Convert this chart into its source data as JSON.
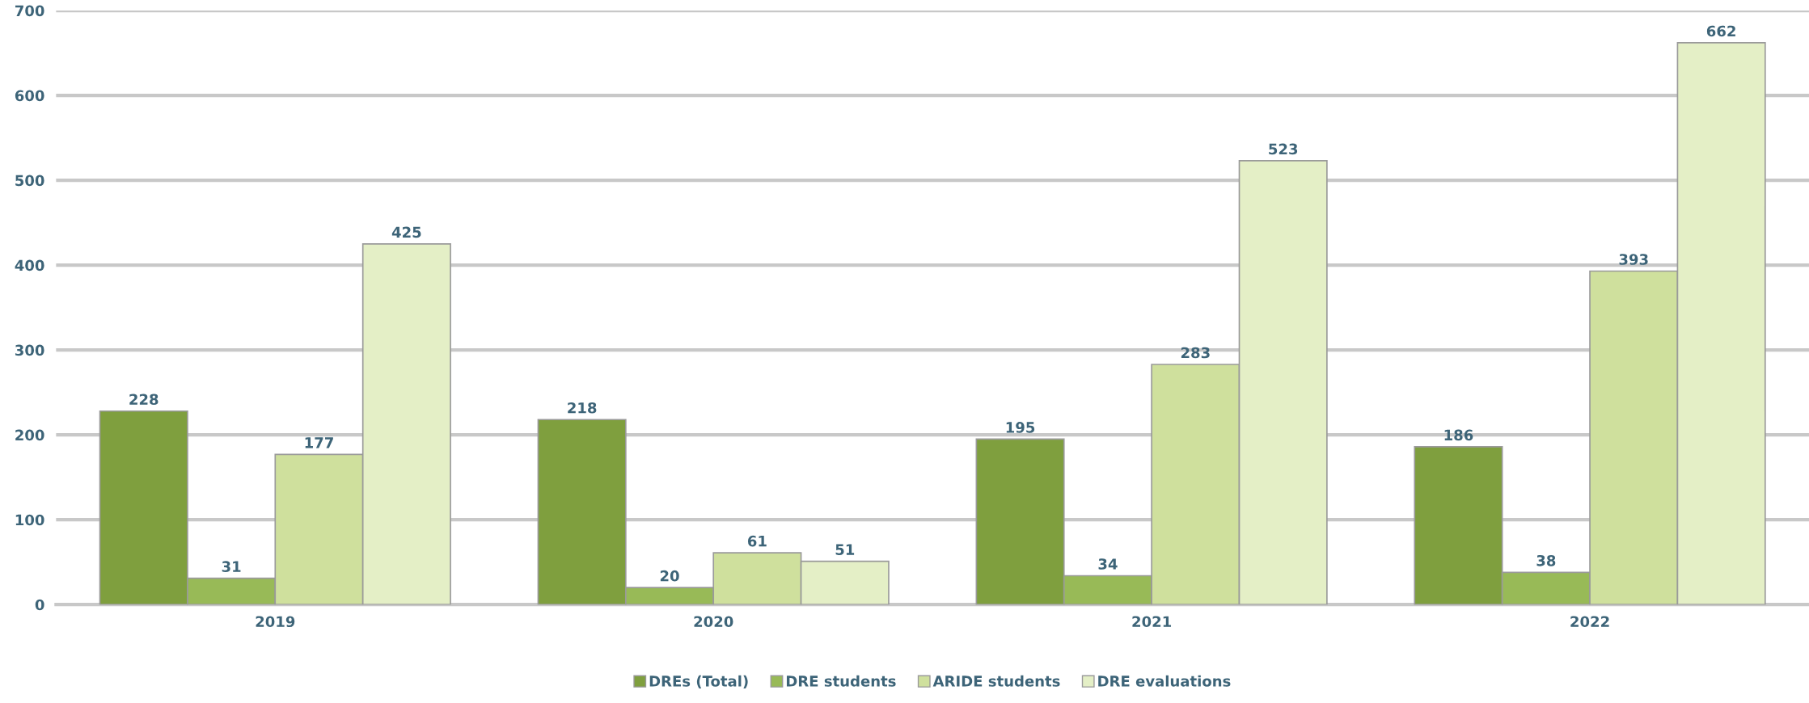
{
  "chart_data": {
    "type": "bar",
    "categories": [
      "2019",
      "2020",
      "2021",
      "2022"
    ],
    "series": [
      {
        "name": "DREs (Total)",
        "color": "#7f9f3e",
        "values": [
          228,
          218,
          195,
          186
        ]
      },
      {
        "name": "DRE students",
        "color": "#98ba57",
        "values": [
          31,
          20,
          34,
          38
        ]
      },
      {
        "name": "ARIDE students",
        "color": "#cfe09d",
        "values": [
          177,
          61,
          283,
          393
        ]
      },
      {
        "name": "DRE evaluations",
        "color": "#e4efc6",
        "values": [
          425,
          51,
          523,
          662
        ]
      }
    ],
    "ylim": [
      0,
      700
    ],
    "yticks": [
      0,
      100,
      200,
      300,
      400,
      500,
      600,
      700
    ],
    "grid": "y",
    "legend": "bottom",
    "data_labels": true
  }
}
